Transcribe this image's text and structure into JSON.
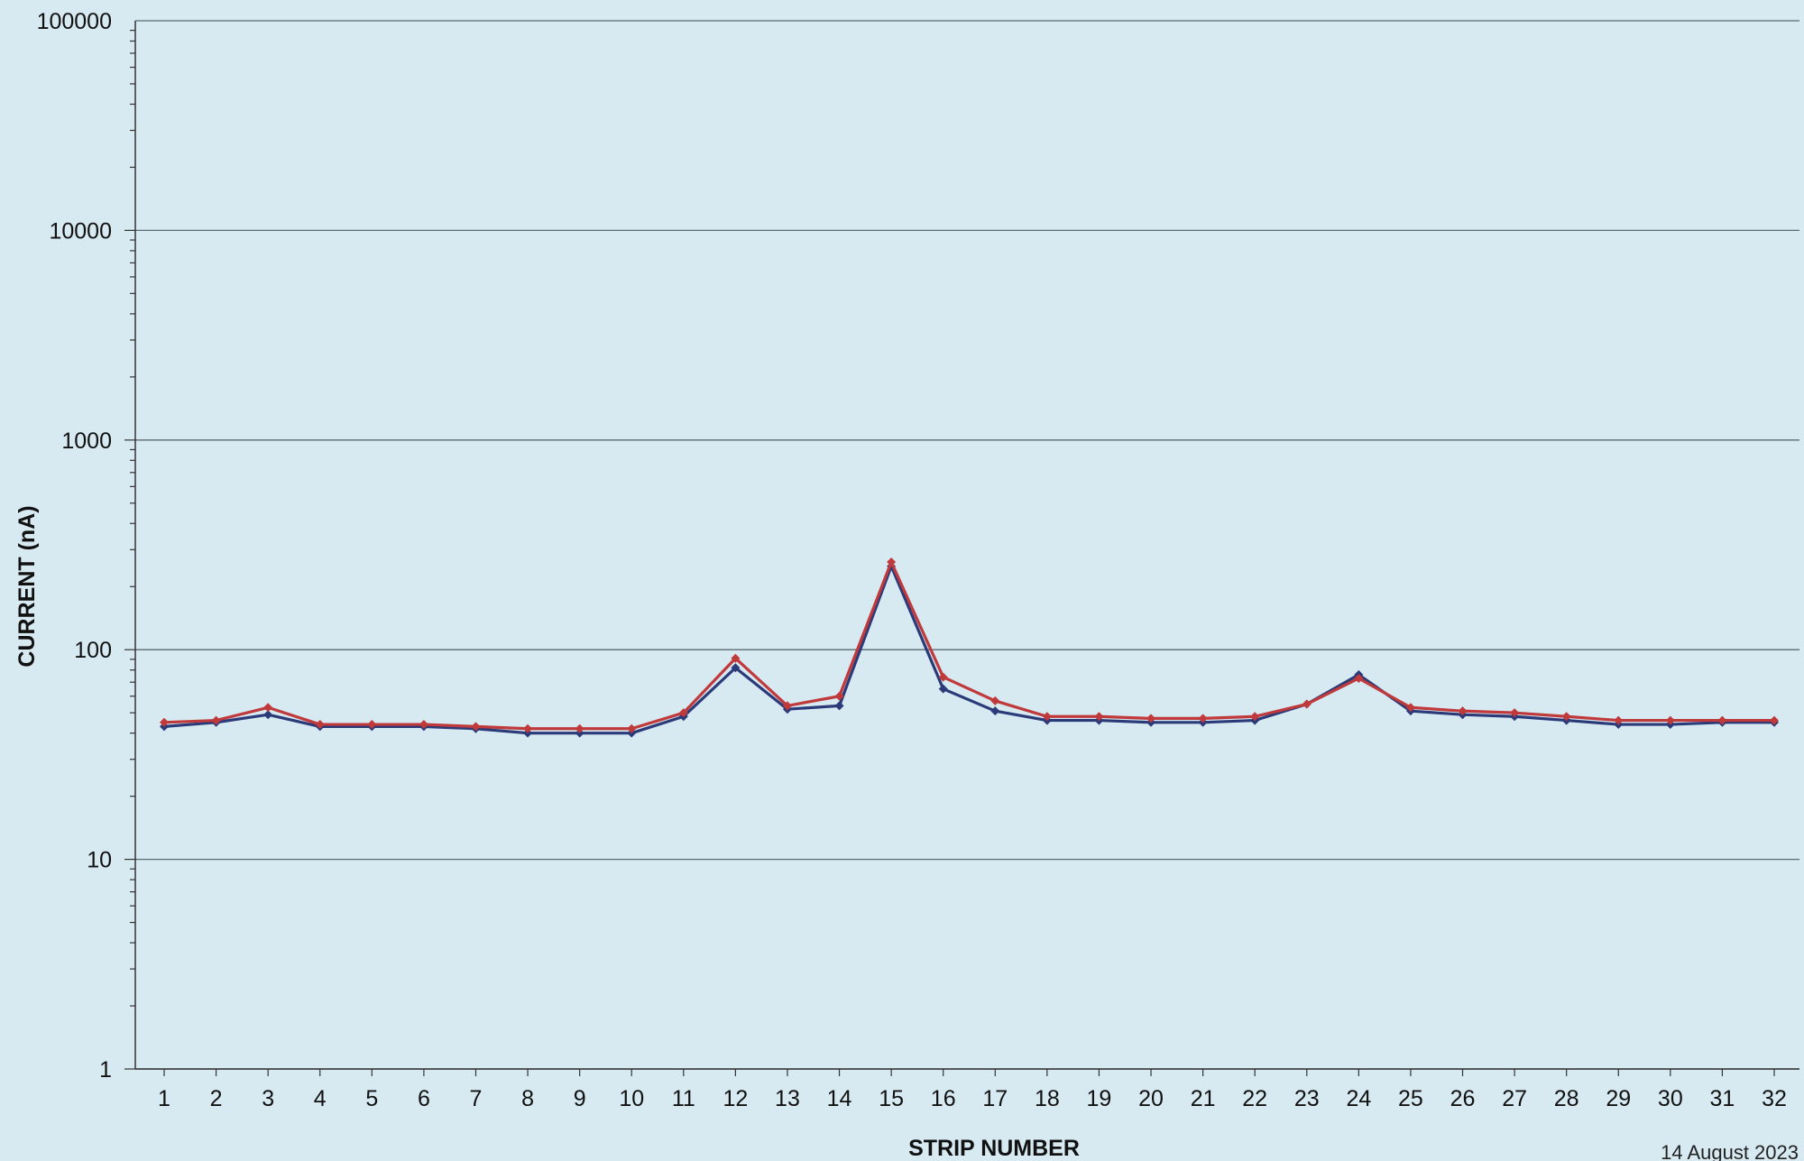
{
  "chart_data": {
    "type": "line",
    "title": "",
    "xlabel": "STRIP NUMBER",
    "ylabel": "CURRENT (nA)",
    "y_scale": "log",
    "ylim": [
      1,
      100000
    ],
    "y_ticks": [
      "100000",
      "10000",
      "1000",
      "100",
      "10",
      "1"
    ],
    "y_tick_values": [
      100000,
      10000,
      1000,
      100,
      10,
      1
    ],
    "grid": "horizontal major gridlines",
    "legend": "none",
    "categories": [
      "1",
      "2",
      "3",
      "4",
      "5",
      "6",
      "7",
      "8",
      "9",
      "10",
      "11",
      "12",
      "13",
      "14",
      "15",
      "16",
      "17",
      "18",
      "19",
      "20",
      "21",
      "22",
      "23",
      "24",
      "25",
      "26",
      "27",
      "28",
      "29",
      "30",
      "31",
      "32"
    ],
    "series": [
      {
        "color": "#2b3a78",
        "values": [
          43,
          45,
          49,
          43,
          43,
          43,
          42,
          40,
          40,
          40,
          48,
          82,
          52,
          54,
          250,
          65,
          51,
          46,
          46,
          45,
          45,
          46,
          55,
          76,
          51,
          49,
          48,
          46,
          44,
          44,
          45,
          45
        ]
      },
      {
        "color": "#c0393b",
        "values": [
          45,
          46,
          53,
          44,
          44,
          44,
          43,
          42,
          42,
          42,
          50,
          91,
          54,
          60,
          262,
          74,
          57,
          48,
          48,
          47,
          47,
          48,
          55,
          73,
          53,
          51,
          50,
          48,
          46,
          46,
          46,
          46
        ]
      }
    ]
  },
  "footer": {
    "date": "14 August 2023"
  }
}
